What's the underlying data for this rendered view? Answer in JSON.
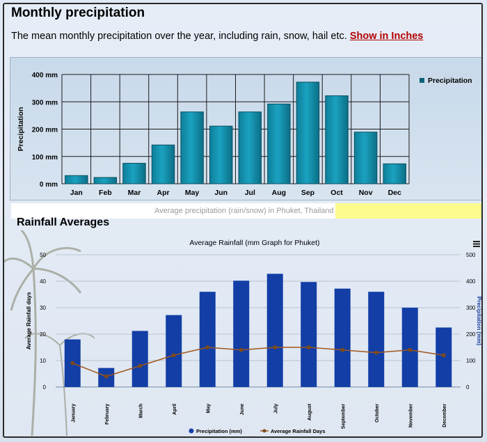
{
  "page": {
    "title": "Monthly precipitation",
    "subtitle": "The mean monthly precipitation over the year, including rain, snow, hail etc.",
    "link_label": "Show in Inches",
    "caption": "Average precipitation (rain/snow) in Phuket, Thailand",
    "section2_title": "Rainfall Averages",
    "menu_icon": "hamburger-menu-icon"
  },
  "colors": {
    "bar1": "#1aa2c0",
    "bar2": "#123ea6",
    "line": "#a0561a",
    "link": "#b30000"
  },
  "chart_data": [
    {
      "type": "bar",
      "title": "",
      "ylabel": "Precipitation",
      "xlabel": "",
      "categories": [
        "Jan",
        "Feb",
        "Mar",
        "Apr",
        "May",
        "Jun",
        "Jul",
        "Aug",
        "Sep",
        "Oct",
        "Nov",
        "Dec"
      ],
      "values": [
        30,
        23,
        75,
        142,
        263,
        211,
        263,
        292,
        372,
        322,
        189,
        73
      ],
      "ylim": [
        0,
        400
      ],
      "yticks": [
        "0 mm",
        "100 mm",
        "200 mm",
        "300 mm",
        "400 mm"
      ],
      "legend": [
        "Precipitation"
      ],
      "legend_position": "top-right",
      "grid": true
    },
    {
      "type": "bar+line",
      "title": "Average Rainfall (mm Graph for Phuket)",
      "categories": [
        "January",
        "February",
        "March",
        "April",
        "May",
        "June",
        "July",
        "August",
        "September",
        "October",
        "November",
        "December"
      ],
      "series": [
        {
          "name": "Precipitation (mm)",
          "axis": "right",
          "values": [
            180,
            72,
            212,
            272,
            360,
            402,
            428,
            397,
            372,
            360,
            300,
            225
          ]
        },
        {
          "name": "Average Rainfall Days",
          "axis": "left",
          "values": [
            9,
            4,
            8,
            12,
            15,
            14,
            15,
            15,
            14,
            13,
            14,
            12
          ]
        }
      ],
      "y_left_label": "Average Rainfall days",
      "y_right_label": "Precipitation (mm)",
      "y_left_lim": [
        0,
        50
      ],
      "y_right_lim": [
        0,
        500
      ],
      "y_left_ticks": [
        "0",
        "10",
        "20",
        "30",
        "40",
        "50"
      ],
      "y_right_ticks": [
        "0",
        "100",
        "200",
        "300",
        "400",
        "500"
      ],
      "legend": [
        "Precipitation (mm)",
        "Average Rainfall Days"
      ],
      "legend_position": "bottom-center"
    }
  ]
}
